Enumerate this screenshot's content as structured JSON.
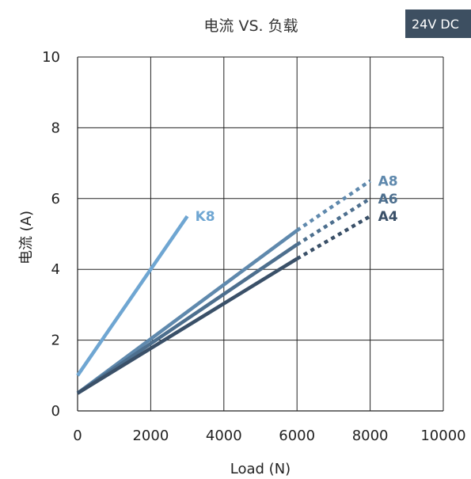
{
  "chart_data": {
    "type": "line",
    "title": "电流 VS. 负载",
    "badge": "24V DC",
    "xlabel": "Load (N)",
    "ylabel": "电流 (A)",
    "xlim": [
      0,
      10000
    ],
    "ylim": [
      0,
      10
    ],
    "xticks": [
      0,
      2000,
      4000,
      6000,
      8000,
      10000
    ],
    "yticks": [
      0,
      2,
      4,
      6,
      8,
      10
    ],
    "xtick_labels": [
      "0",
      "2000",
      "4000",
      "6000",
      "8000",
      "10000"
    ],
    "ytick_labels": [
      "0",
      "2",
      "4",
      "6",
      "8",
      "10"
    ],
    "grid": true,
    "series": [
      {
        "name": "K8",
        "color": "#6fa6d2",
        "solid": [
          [
            0,
            1.0
          ],
          [
            3000,
            5.5
          ]
        ],
        "dashed": []
      },
      {
        "name": "A8",
        "color": "#5f89ad",
        "solid": [
          [
            0,
            0.5
          ],
          [
            6000,
            5.1
          ]
        ],
        "dashed": [
          [
            6000,
            5.1
          ],
          [
            8000,
            6.5
          ]
        ]
      },
      {
        "name": "A6",
        "color": "#4d6f8e",
        "solid": [
          [
            0,
            0.5
          ],
          [
            6000,
            4.7
          ]
        ],
        "dashed": [
          [
            6000,
            4.7
          ],
          [
            8000,
            6.0
          ]
        ]
      },
      {
        "name": "A4",
        "color": "#3a5068",
        "solid": [
          [
            0,
            0.5
          ],
          [
            6000,
            4.3
          ]
        ],
        "dashed": [
          [
            6000,
            4.3
          ],
          [
            8000,
            5.5
          ]
        ]
      }
    ]
  }
}
